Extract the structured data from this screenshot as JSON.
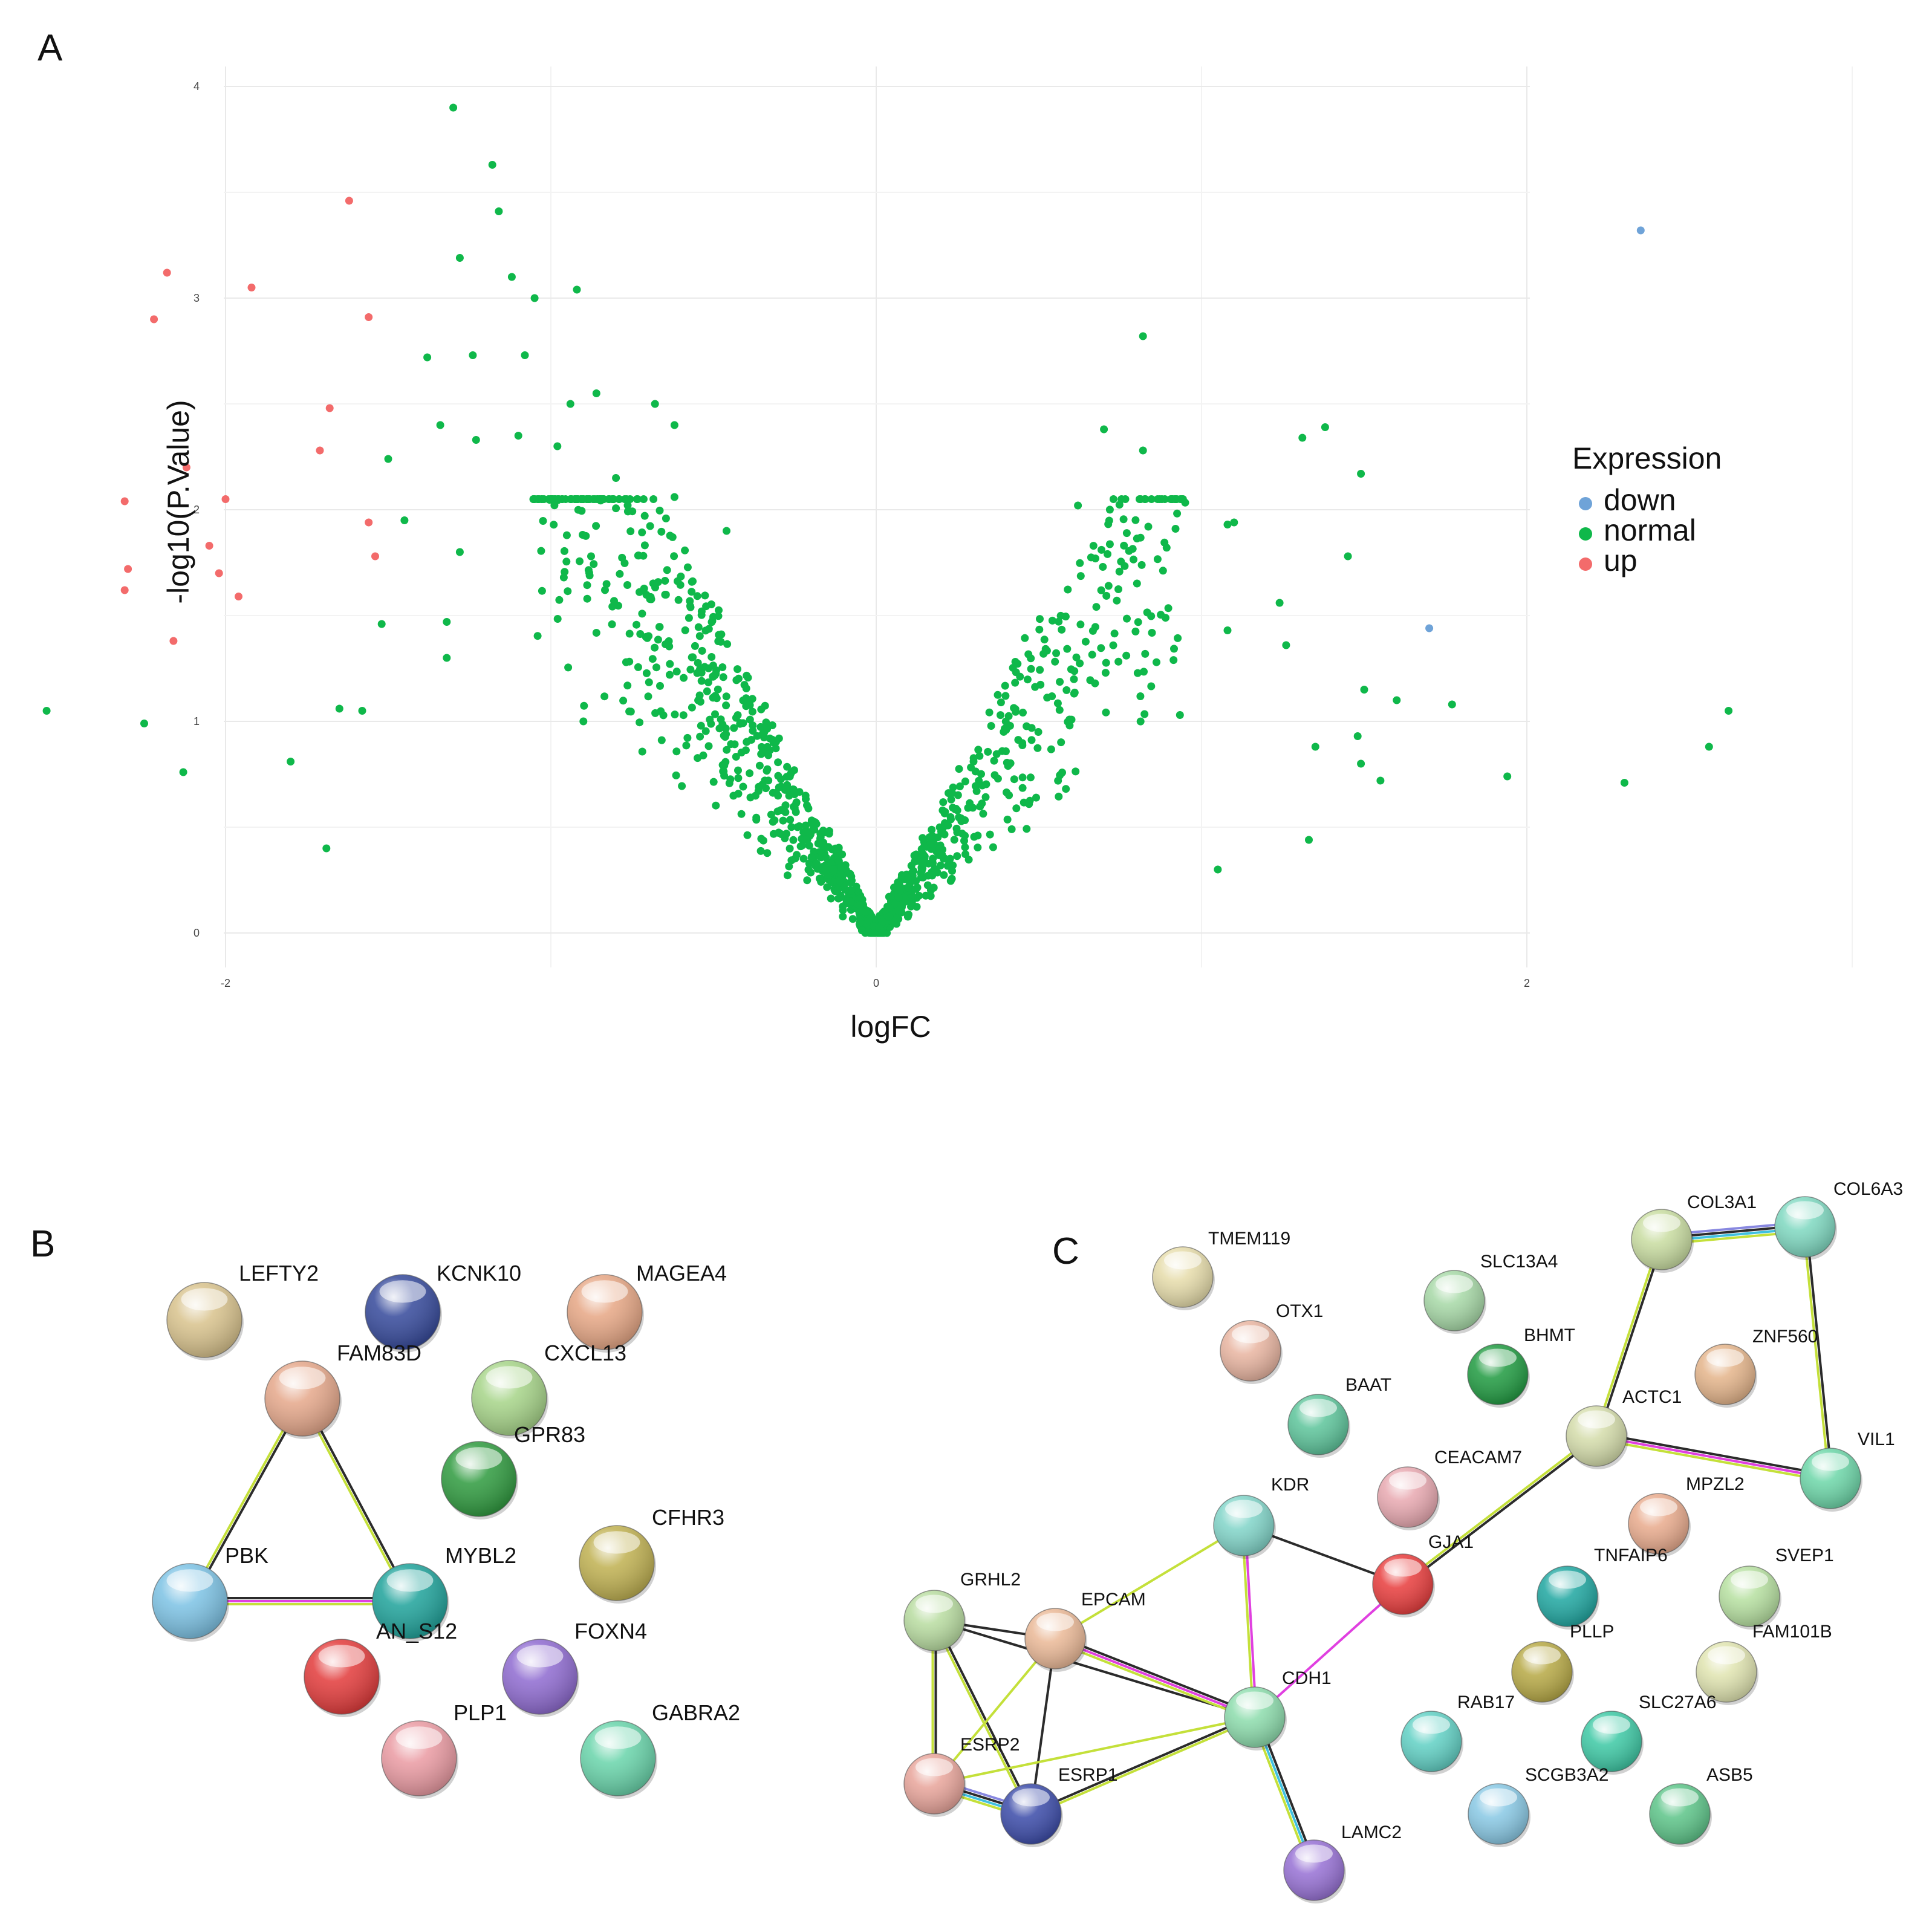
{
  "panels": {
    "a": "A",
    "b": "B",
    "c": "C"
  },
  "chart_data": {
    "type": "scatter",
    "title": "",
    "xlabel": "logFC",
    "ylabel": "-log10(P.Value)",
    "xlim": [
      -4,
      4
    ],
    "ylim": [
      0,
      4
    ],
    "x_ticks": [
      -4,
      -2,
      0,
      2,
      4
    ],
    "y_ticks": [
      0,
      1,
      2,
      3,
      4
    ],
    "grid": true,
    "legend": {
      "title": "Expression",
      "position": "right",
      "entries": [
        {
          "label": "down",
          "color": "#6fa3d8"
        },
        {
          "label": "normal",
          "color": "#0fb84a"
        },
        {
          "label": "up",
          "color": "#f36b6b"
        }
      ]
    },
    "series": [
      {
        "name": "down",
        "color": "#6fa3d8",
        "points": [
          [
            2.35,
            3.32
          ],
          [
            1.7,
            1.44
          ]
        ]
      },
      {
        "name": "up",
        "color": "#f36b6b",
        "points": [
          [
            -1.62,
            3.46
          ],
          [
            -2.18,
            3.12
          ],
          [
            -1.92,
            3.05
          ],
          [
            -2.22,
            2.9
          ],
          [
            -1.56,
            2.91
          ],
          [
            -3.0,
            2.18
          ],
          [
            -1.68,
            2.48
          ],
          [
            -1.71,
            2.28
          ],
          [
            -2.12,
            2.2
          ],
          [
            -2.31,
            2.04
          ],
          [
            -2.0,
            2.05
          ],
          [
            -1.56,
            1.94
          ],
          [
            -2.05,
            1.83
          ],
          [
            -1.54,
            1.78
          ],
          [
            -2.3,
            1.72
          ],
          [
            -2.02,
            1.7
          ],
          [
            -2.31,
            1.62
          ],
          [
            -1.96,
            1.59
          ],
          [
            -2.16,
            1.38
          ],
          [
            -3.73,
            1.31
          ]
        ]
      },
      {
        "name": "normal",
        "color": "#0fb84a",
        "n_points": 1400,
        "visible_range": {
          "x": [
            -2.55,
            3.72
          ],
          "y": [
            0.0,
            3.9
          ]
        },
        "points": [
          [
            -1.3,
            3.9
          ],
          [
            -1.18,
            3.63
          ],
          [
            -1.16,
            3.41
          ],
          [
            -1.28,
            3.19
          ],
          [
            -1.12,
            3.1
          ],
          [
            -1.05,
            3.0
          ],
          [
            -0.92,
            3.04
          ],
          [
            -1.38,
            2.72
          ],
          [
            -1.24,
            2.73
          ],
          [
            -1.08,
            2.73
          ],
          [
            -0.86,
            2.55
          ],
          [
            -0.94,
            2.5
          ],
          [
            -0.68,
            2.5
          ],
          [
            -0.62,
            2.4
          ],
          [
            -1.34,
            2.4
          ],
          [
            -1.23,
            2.33
          ],
          [
            -1.1,
            2.35
          ],
          [
            -1.5,
            2.24
          ],
          [
            -0.98,
            2.3
          ],
          [
            -0.8,
            2.15
          ],
          [
            -1.45,
            1.95
          ],
          [
            -0.62,
            2.06
          ],
          [
            -1.28,
            1.8
          ],
          [
            -0.46,
            1.9
          ],
          [
            -1.52,
            1.46
          ],
          [
            -1.32,
            1.47
          ],
          [
            -1.65,
            1.06
          ],
          [
            -1.58,
            1.05
          ],
          [
            -1.8,
            0.81
          ],
          [
            -1.69,
            0.4
          ],
          [
            -2.55,
            1.05
          ],
          [
            -2.25,
            0.99
          ],
          [
            -2.13,
            0.76
          ],
          [
            -1.32,
            1.3
          ],
          [
            -0.9,
            1.0
          ],
          [
            0.82,
            2.82
          ],
          [
            0.7,
            2.38
          ],
          [
            0.82,
            2.28
          ],
          [
            1.38,
            2.39
          ],
          [
            1.31,
            2.34
          ],
          [
            1.49,
            2.17
          ],
          [
            0.62,
            2.02
          ],
          [
            1.1,
            1.94
          ],
          [
            1.08,
            1.93
          ],
          [
            0.92,
            1.91
          ],
          [
            1.45,
            1.78
          ],
          [
            1.24,
            1.56
          ],
          [
            1.08,
            1.43
          ],
          [
            1.26,
            1.36
          ],
          [
            1.5,
            1.15
          ],
          [
            1.6,
            1.1
          ],
          [
            1.77,
            1.08
          ],
          [
            1.48,
            0.93
          ],
          [
            1.35,
            0.88
          ],
          [
            1.49,
            0.8
          ],
          [
            1.94,
            0.74
          ],
          [
            1.55,
            0.72
          ],
          [
            2.3,
            0.71
          ],
          [
            2.62,
            1.05
          ],
          [
            2.56,
            0.88
          ],
          [
            3.72,
            0.57
          ],
          [
            1.33,
            0.44
          ],
          [
            1.05,
            0.3
          ],
          [
            0.02,
            0.0
          ],
          [
            -0.05,
            0.05
          ]
        ]
      }
    ]
  },
  "network_b": {
    "nodes": [
      {
        "id": "LEFTY2",
        "label": "LEFTY2",
        "color": "#d8c28c"
      },
      {
        "id": "KCNK10",
        "label": "KCNK10",
        "color": "#34489a"
      },
      {
        "id": "MAGEA4",
        "label": "MAGEA4",
        "color": "#e6a684"
      },
      {
        "id": "FAM83D",
        "label": "FAM83D",
        "color": "#e5a78a"
      },
      {
        "id": "CXCL13",
        "label": "CXCL13",
        "color": "#a6d488"
      },
      {
        "id": "GPR83",
        "label": "GPR83",
        "color": "#2e9a3e"
      },
      {
        "id": "CFHR3",
        "label": "CFHR3",
        "color": "#bfb050"
      },
      {
        "id": "PBK",
        "label": "PBK",
        "color": "#7cc2e4"
      },
      {
        "id": "MYBL2",
        "label": "MYBL2",
        "color": "#1ea29a"
      },
      {
        "id": "ANKS12",
        "label": "AN_S12",
        "color": "#e23a3a"
      },
      {
        "id": "FOXN4",
        "label": "FOXN4",
        "color": "#8e6ad0"
      },
      {
        "id": "PLP1",
        "label": "PLP1",
        "color": "#ea9aa2"
      },
      {
        "id": "GABRA2",
        "label": "GABRA2",
        "color": "#68d4aa"
      }
    ],
    "edges": [
      {
        "source": "FAM83D",
        "target": "PBK",
        "colors": [
          "#2b2b2b",
          "#c4e03a"
        ]
      },
      {
        "source": "FAM83D",
        "target": "MYBL2",
        "colors": [
          "#2b2b2b",
          "#c4e03a"
        ]
      },
      {
        "source": "PBK",
        "target": "MYBL2",
        "colors": [
          "#2b2b2b",
          "#e040e0",
          "#c4e03a"
        ]
      }
    ]
  },
  "network_c": {
    "nodes": [
      {
        "id": "TMEM119",
        "label": "TMEM119",
        "color": "#e6dcaa"
      },
      {
        "id": "OTX1",
        "label": "OTX1",
        "color": "#e8b4a0"
      },
      {
        "id": "SLC13A4",
        "label": "SLC13A4",
        "color": "#a6d8a6"
      },
      {
        "id": "BHMT",
        "label": "BHMT",
        "color": "#1f9a40"
      },
      {
        "id": "BAAT",
        "label": "BAAT",
        "color": "#5cc49a"
      },
      {
        "id": "COL3A1",
        "label": "COL3A1",
        "color": "#c8dca0"
      },
      {
        "id": "COL6A3",
        "label": "COL6A3",
        "color": "#7ed8c0"
      },
      {
        "id": "ZNF560",
        "label": "ZNF560",
        "color": "#e4b48a"
      },
      {
        "id": "ACTC1",
        "label": "ACTC1",
        "color": "#d4dcaa"
      },
      {
        "id": "VIL1",
        "label": "VIL1",
        "color": "#6cd6a8"
      },
      {
        "id": "CEACAM7",
        "label": "CEACAM7",
        "color": "#e8a8b0"
      },
      {
        "id": "KDR",
        "label": "KDR",
        "color": "#80d4c8"
      },
      {
        "id": "GJA1",
        "label": "GJA1",
        "color": "#e83c3c"
      },
      {
        "id": "MPZL2",
        "label": "MPZL2",
        "color": "#e8aa8c"
      },
      {
        "id": "TNFAIP6",
        "label": "TNFAIP6",
        "color": "#1ea6a0"
      },
      {
        "id": "SVEP1",
        "label": "SVEP1",
        "color": "#b6e0a0"
      },
      {
        "id": "GRHL2",
        "label": "GRHL2",
        "color": "#b8dca0"
      },
      {
        "id": "EPCAM",
        "label": "EPCAM",
        "color": "#eab896"
      },
      {
        "id": "FAM101B",
        "label": "FAM101B",
        "color": "#e0e4b0"
      },
      {
        "id": "PLLP",
        "label": "PLLP",
        "color": "#b6a844"
      },
      {
        "id": "CDH1",
        "label": "CDH1",
        "color": "#8cdcac"
      },
      {
        "id": "RAB17",
        "label": "RAB17",
        "color": "#60d0c4"
      },
      {
        "id": "SLC27A6",
        "label": "SLC27A6",
        "color": "#3cc8a4"
      },
      {
        "id": "ESRP2",
        "label": "ESRP2",
        "color": "#e8a49a"
      },
      {
        "id": "ESRP1",
        "label": "ESRP1",
        "color": "#3a4aa8"
      },
      {
        "id": "SCGB3A2",
        "label": "SCGB3A2",
        "color": "#88c8e4"
      },
      {
        "id": "ASB5",
        "label": "ASB5",
        "color": "#5cc488"
      },
      {
        "id": "LAMC2",
        "label": "LAMC2",
        "color": "#9670d4"
      }
    ],
    "edges": [
      {
        "source": "COL3A1",
        "target": "COL6A3",
        "colors": [
          "#8888e0",
          "#2b2b2b",
          "#40c0e0",
          "#c4e03a"
        ]
      },
      {
        "source": "COL3A1",
        "target": "ACTC1",
        "colors": [
          "#2b2b2b",
          "#c4e03a"
        ]
      },
      {
        "source": "COL6A3",
        "target": "VIL1",
        "colors": [
          "#2b2b2b",
          "#c4e03a"
        ]
      },
      {
        "source": "ACTC1",
        "target": "VIL1",
        "colors": [
          "#2b2b2b",
          "#e040e0",
          "#c4e03a"
        ]
      },
      {
        "source": "ACTC1",
        "target": "GJA1",
        "colors": [
          "#2b2b2b",
          "#c4e03a"
        ]
      },
      {
        "source": "KDR",
        "target": "GJA1",
        "colors": [
          "#2b2b2b"
        ]
      },
      {
        "source": "KDR",
        "target": "EPCAM",
        "colors": [
          "#c4e03a"
        ]
      },
      {
        "source": "KDR",
        "target": "CDH1",
        "colors": [
          "#e040e0",
          "#c4e03a"
        ]
      },
      {
        "source": "GJA1",
        "target": "CDH1",
        "colors": [
          "#e040e0"
        ]
      },
      {
        "source": "GRHL2",
        "target": "EPCAM",
        "colors": [
          "#2b2b2b"
        ]
      },
      {
        "source": "GRHL2",
        "target": "CDH1",
        "colors": [
          "#2b2b2b"
        ]
      },
      {
        "source": "GRHL2",
        "target": "ESRP2",
        "colors": [
          "#2b2b2b",
          "#c4e03a"
        ]
      },
      {
        "source": "GRHL2",
        "target": "ESRP1",
        "colors": [
          "#2b2b2b",
          "#c4e03a"
        ]
      },
      {
        "source": "EPCAM",
        "target": "CDH1",
        "colors": [
          "#2b2b2b",
          "#e040e0",
          "#c4e03a"
        ]
      },
      {
        "source": "EPCAM",
        "target": "ESRP2",
        "colors": [
          "#c4e03a"
        ]
      },
      {
        "source": "EPCAM",
        "target": "ESRP1",
        "colors": [
          "#2b2b2b"
        ]
      },
      {
        "source": "ESRP2",
        "target": "ESRP1",
        "colors": [
          "#8888e0",
          "#2b2b2b",
          "#40c0e0",
          "#c4e03a"
        ]
      },
      {
        "source": "ESRP2",
        "target": "CDH1",
        "colors": [
          "#c4e03a"
        ]
      },
      {
        "source": "ESRP1",
        "target": "CDH1",
        "colors": [
          "#2b2b2b",
          "#c4e03a"
        ]
      },
      {
        "source": "CDH1",
        "target": "LAMC2",
        "colors": [
          "#2b2b2b",
          "#40c0e0",
          "#c4e03a"
        ]
      }
    ]
  }
}
